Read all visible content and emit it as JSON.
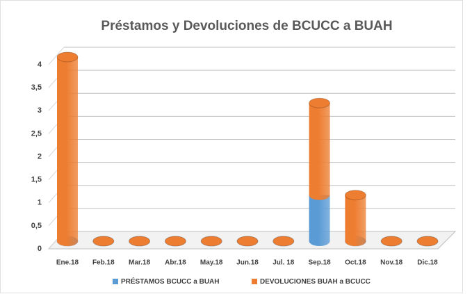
{
  "chart_data": {
    "type": "bar3d_stacked",
    "title": "Préstamos y Devoluciones de BCUCC  a BUAH",
    "categories": [
      "Ene.18",
      "Feb.18",
      "Mar.18",
      "Abr.18",
      "May.18",
      "Jun.18",
      "Jul. 18",
      "Sep.18",
      "Oct.18",
      "Nov.18",
      "Dic.18"
    ],
    "series": [
      {
        "name": "PRÉSTAMOS BCUCC a BUAH",
        "color": "#5b9bd5",
        "values": [
          0,
          0,
          0,
          0,
          0,
          0,
          0,
          1,
          0,
          0,
          0
        ]
      },
      {
        "name": "DEVOLUCIONES BUAH a BCUCC",
        "color": "#ed7d31",
        "values": [
          4,
          0,
          0,
          0,
          0,
          0,
          0,
          2,
          1,
          0,
          0
        ]
      }
    ],
    "ylim": [
      0,
      4
    ],
    "yticks": [
      0,
      {
        "value": 0.5,
        "label": "0,5"
      },
      1,
      {
        "value": 1.5,
        "label": "1,5"
      },
      2,
      {
        "value": 2.5,
        "label": "2,5"
      },
      3,
      {
        "value": 3.5,
        "label": "3,5"
      },
      4
    ],
    "grid": true
  }
}
